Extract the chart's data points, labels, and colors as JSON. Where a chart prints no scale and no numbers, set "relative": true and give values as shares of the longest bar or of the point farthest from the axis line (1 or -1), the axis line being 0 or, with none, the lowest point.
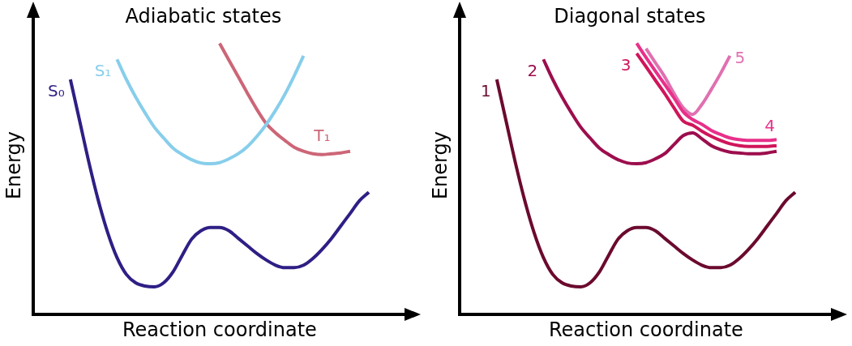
{
  "chart_data": [
    {
      "type": "line",
      "title": "Adiabatic states",
      "xlabel": "Reaction coordinate",
      "ylabel": "Energy",
      "relative": true,
      "categories": [
        null,
        null,
        null,
        null,
        null,
        null,
        null,
        null,
        null,
        null,
        null,
        null,
        null,
        null,
        null,
        null,
        null,
        null,
        null,
        null,
        null,
        null,
        null,
        null,
        null,
        null,
        null,
        null,
        null,
        null,
        null,
        null,
        null,
        null,
        null,
        null,
        null,
        null,
        null,
        null,
        null
      ],
      "series": [
        {
          "name": "S₀",
          "color": "#2e1f85",
          "values": [
            null,
            null,
            null,
            null,
            0.867,
            0.713,
            0.559,
            0.42,
            0.302,
            0.21,
            0.148,
            0.117,
            0.105,
            0.102,
            0.117,
            0.157,
            0.219,
            0.278,
            0.309,
            0.321,
            0.321,
            0.309,
            0.281,
            0.253,
            0.225,
            0.201,
            0.182,
            0.173,
            0.173,
            0.182,
            0.207,
            0.241,
            0.281,
            0.327,
            0.373,
            0.42,
            0.451,
            null,
            null,
            null,
            null
          ]
        },
        {
          "name": "S₁",
          "color": "#87ceeb",
          "values": [
            null,
            null,
            null,
            null,
            null,
            null,
            null,
            null,
            null,
            0.941,
            0.867,
            0.802,
            0.744,
            0.691,
            0.651,
            0.614,
            0.59,
            0.571,
            0.559,
            0.556,
            0.56,
            0.574,
            0.593,
            0.62,
            0.657,
            0.701,
            0.753,
            0.812,
            0.88,
            0.954,
            null,
            null,
            null,
            null,
            null,
            null,
            null,
            null,
            null,
            null,
            null
          ]
        },
        {
          "name": "T₁",
          "color": "#cc6677",
          "values": [
            null,
            null,
            null,
            null,
            null,
            null,
            null,
            null,
            null,
            null,
            null,
            null,
            null,
            null,
            null,
            null,
            null,
            null,
            null,
            null,
            1,
            0.938,
            0.877,
            0.815,
            0.756,
            0.704,
            0.67,
            0.642,
            0.617,
            0.602,
            0.593,
            0.59,
            0.593,
            0.596,
            0.602,
            null,
            null,
            null,
            null,
            null,
            null
          ]
        }
      ]
    },
    {
      "type": "line",
      "title": "Diagonal states",
      "xlabel": "Reaction coordinate",
      "ylabel": "Energy",
      "relative": true,
      "categories": [
        null,
        null,
        null,
        null,
        null,
        null,
        null,
        null,
        null,
        null,
        null,
        null,
        null,
        null,
        null,
        null,
        null,
        null,
        null,
        null,
        null,
        null,
        null,
        null,
        null,
        null,
        null,
        null,
        null,
        null,
        null,
        null,
        null,
        null,
        null,
        null,
        null,
        null,
        null,
        null,
        null
      ],
      "series": [
        {
          "name": "1",
          "color": "#6b0a2e",
          "values": [
            null,
            null,
            null,
            null,
            0.867,
            0.713,
            0.559,
            0.42,
            0.302,
            0.21,
            0.148,
            0.117,
            0.105,
            0.102,
            0.117,
            0.157,
            0.219,
            0.278,
            0.309,
            0.321,
            0.321,
            0.309,
            0.281,
            0.253,
            0.225,
            0.201,
            0.182,
            0.173,
            0.173,
            0.182,
            0.207,
            0.241,
            0.281,
            0.327,
            0.373,
            0.42,
            0.451,
            null,
            null,
            null,
            null
          ]
        },
        {
          "name": "2",
          "color": "#9c0e4d",
          "values": [
            null,
            null,
            null,
            null,
            null,
            null,
            null,
            null,
            null,
            0.941,
            0.867,
            0.802,
            0.744,
            0.691,
            0.651,
            0.614,
            0.59,
            0.571,
            0.559,
            0.556,
            0.56,
            0.574,
            0.593,
            0.627,
            0.66,
            0.67,
            0.648,
            0.623,
            0.608,
            0.599,
            0.596,
            0.593,
            0.593,
            0.596,
            0.602,
            null,
            null,
            null,
            null,
            null,
            null
          ]
        },
        {
          "name": "3",
          "color": "#d0155a",
          "values": [
            null,
            null,
            null,
            null,
            null,
            null,
            null,
            null,
            null,
            null,
            null,
            null,
            null,
            null,
            null,
            null,
            null,
            null,
            null,
            0.963,
            0.914,
            0.864,
            0.815,
            0.762,
            0.713,
            0.698,
            0.676,
            0.657,
            0.642,
            0.63,
            0.623,
            0.62,
            0.62,
            0.62,
            0.623,
            null,
            null,
            null,
            null,
            null,
            null
          ]
        },
        {
          "name": "4",
          "color": "#e8308a",
          "values": [
            null,
            null,
            null,
            null,
            null,
            null,
            null,
            null,
            null,
            null,
            null,
            null,
            null,
            null,
            null,
            null,
            null,
            null,
            null,
            1,
            0.948,
            0.898,
            0.849,
            0.799,
            0.747,
            0.719,
            0.701,
            0.679,
            0.664,
            0.651,
            0.645,
            0.642,
            0.642,
            0.642,
            0.645,
            null,
            null,
            null,
            null,
            null,
            null
          ]
        },
        {
          "name": "5",
          "color": "#e070b0",
          "values": [
            null,
            null,
            null,
            null,
            null,
            null,
            null,
            null,
            null,
            null,
            null,
            null,
            null,
            null,
            null,
            null,
            null,
            null,
            null,
            null,
            0.981,
            0.929,
            0.877,
            0.815,
            0.762,
            0.738,
            0.775,
            0.83,
            0.889,
            0.954,
            null,
            null,
            null,
            null,
            null,
            null,
            null,
            null,
            null,
            null,
            null
          ]
        }
      ]
    }
  ]
}
